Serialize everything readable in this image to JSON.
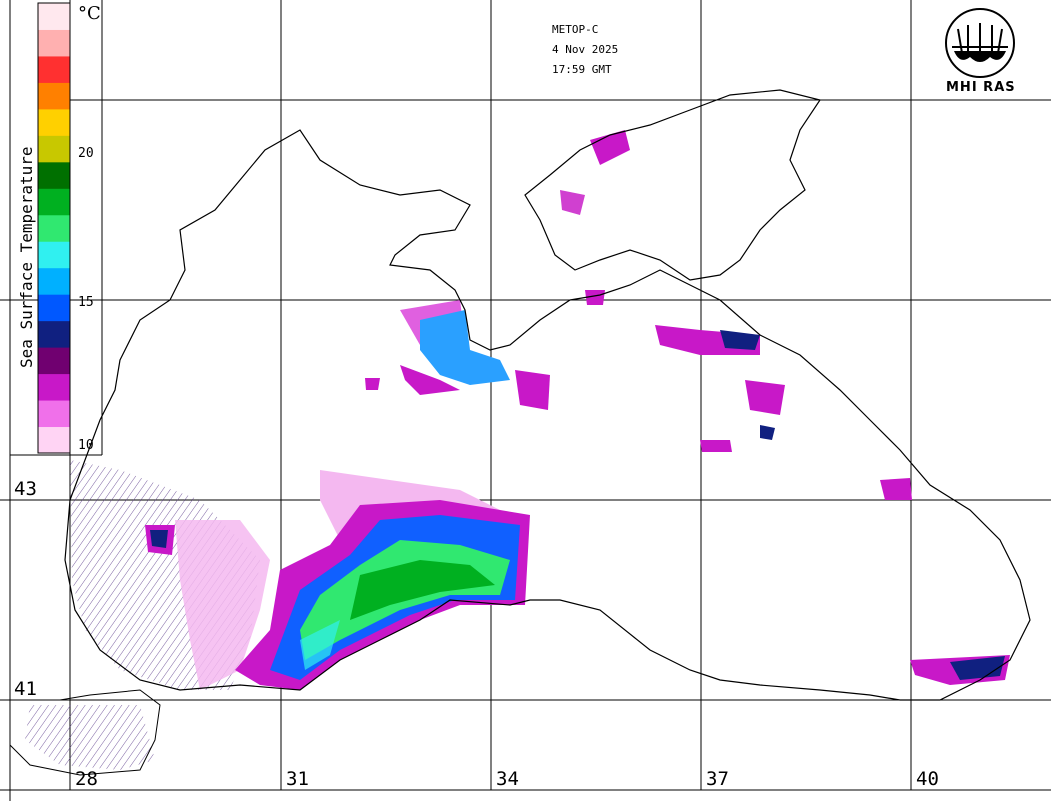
{
  "header": {
    "satellite": "METOP-C",
    "date": "4 Nov 2025",
    "time": "17:59 GMT"
  },
  "legend": {
    "title": "Sea Surface Temperature",
    "unit": "°C",
    "ticks": [
      "20",
      "15",
      "10"
    ],
    "range": [
      10,
      25
    ],
    "colors": [
      "#ffd4f4",
      "#f070ea",
      "#c818c8",
      "#700070",
      "#102080",
      "#0058ff",
      "#00b0ff",
      "#30f0f0",
      "#30e870",
      "#00b020",
      "#007000",
      "#c8c800",
      "#ffd000",
      "#ff8000",
      "#ff3030",
      "#ffb0b0",
      "#ffe8ee"
    ]
  },
  "logo": {
    "text": "MHI RAS",
    "icon": "mhi-ras-logo-icon"
  },
  "grid": {
    "lat_labels": [
      "43",
      "41"
    ],
    "lon_labels": [
      "28",
      "31",
      "34",
      "37",
      "40"
    ]
  },
  "colors": {
    "land": "#ffffff",
    "coast": "#000000",
    "warm": "#00b020",
    "cold": "#c818c8",
    "mid": "#0058ff"
  }
}
